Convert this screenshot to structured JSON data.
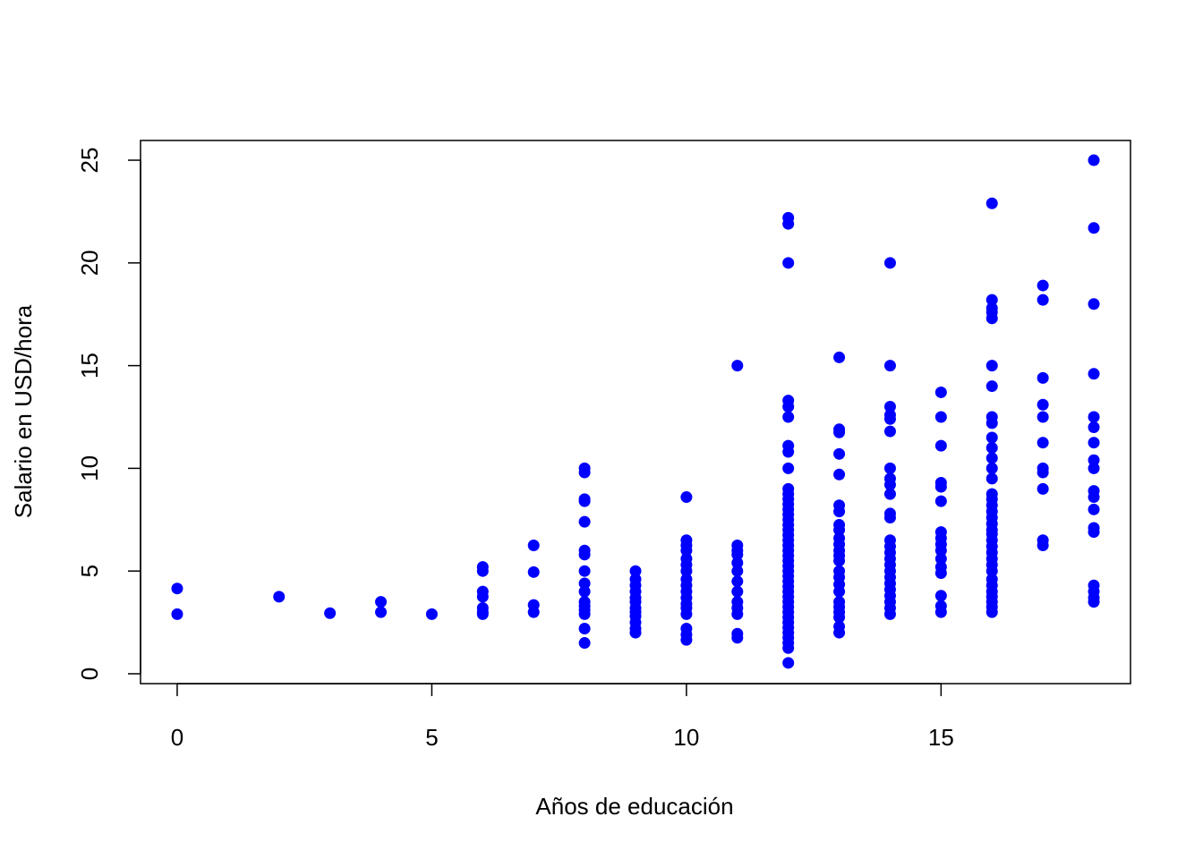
{
  "chart_data": {
    "type": "scatter",
    "title": "",
    "xlabel": "Años de educación",
    "ylabel": "Salario en USD/hora",
    "xlim": [
      -0.72,
      18.72
    ],
    "ylim": [
      -0.48,
      25.96
    ],
    "x_ticks": [
      0,
      5,
      10,
      15
    ],
    "y_ticks": [
      0,
      5,
      10,
      15,
      20,
      25
    ],
    "x_tick_labels": [
      "0",
      "5",
      "10",
      "15"
    ],
    "y_tick_labels": [
      "0",
      "5",
      "10",
      "15",
      "20",
      "25"
    ],
    "grid": false,
    "legend": "none",
    "point_color": "#0000ff",
    "points": [
      [
        0,
        2.9
      ],
      [
        0,
        4.15
      ],
      [
        2,
        3.75
      ],
      [
        3,
        2.95
      ],
      [
        4,
        3.0
      ],
      [
        4,
        3.5
      ],
      [
        5,
        2.9
      ],
      [
        6,
        2.9
      ],
      [
        6,
        3.0
      ],
      [
        6,
        3.2
      ],
      [
        6,
        3.75
      ],
      [
        6,
        4.0
      ],
      [
        6,
        5.0
      ],
      [
        6,
        5.2
      ],
      [
        7,
        3.0
      ],
      [
        7,
        3.35
      ],
      [
        7,
        4.95
      ],
      [
        7,
        6.25
      ],
      [
        8,
        1.5
      ],
      [
        8,
        2.2
      ],
      [
        8,
        2.9
      ],
      [
        8,
        3.1
      ],
      [
        8,
        3.3
      ],
      [
        8,
        3.5
      ],
      [
        8,
        4.0
      ],
      [
        8,
        4.4
      ],
      [
        8,
        5.0
      ],
      [
        8,
        5.8
      ],
      [
        8,
        6.0
      ],
      [
        8,
        7.4
      ],
      [
        8,
        8.4
      ],
      [
        8,
        8.5
      ],
      [
        8,
        9.8
      ],
      [
        8,
        10.0
      ],
      [
        9,
        2.0
      ],
      [
        9,
        2.2
      ],
      [
        9,
        2.5
      ],
      [
        9,
        2.8
      ],
      [
        9,
        3.0
      ],
      [
        9,
        3.2
      ],
      [
        9,
        3.5
      ],
      [
        9,
        3.7
      ],
      [
        9,
        4.0
      ],
      [
        9,
        4.3
      ],
      [
        9,
        4.6
      ],
      [
        9,
        5.0
      ],
      [
        10,
        1.65
      ],
      [
        10,
        1.9
      ],
      [
        10,
        2.2
      ],
      [
        10,
        2.9
      ],
      [
        10,
        3.2
      ],
      [
        10,
        3.4
      ],
      [
        10,
        3.7
      ],
      [
        10,
        4.0
      ],
      [
        10,
        4.3
      ],
      [
        10,
        4.6
      ],
      [
        10,
        5.0
      ],
      [
        10,
        5.3
      ],
      [
        10,
        5.6
      ],
      [
        10,
        6.0
      ],
      [
        10,
        6.25
      ],
      [
        10,
        6.5
      ],
      [
        10,
        8.6
      ],
      [
        11,
        1.75
      ],
      [
        11,
        1.95
      ],
      [
        11,
        2.9
      ],
      [
        11,
        3.2
      ],
      [
        11,
        3.5
      ],
      [
        11,
        4.0
      ],
      [
        11,
        4.5
      ],
      [
        11,
        5.0
      ],
      [
        11,
        5.4
      ],
      [
        11,
        5.8
      ],
      [
        11,
        6.0
      ],
      [
        11,
        6.25
      ],
      [
        11,
        15.0
      ],
      [
        12,
        0.53
      ],
      [
        12,
        1.25
      ],
      [
        12,
        1.5
      ],
      [
        12,
        1.75
      ],
      [
        12,
        2.0
      ],
      [
        12,
        2.25
      ],
      [
        12,
        2.5
      ],
      [
        12,
        2.75
      ],
      [
        12,
        3.0
      ],
      [
        12,
        3.25
      ],
      [
        12,
        3.5
      ],
      [
        12,
        3.75
      ],
      [
        12,
        4.0
      ],
      [
        12,
        4.25
      ],
      [
        12,
        4.5
      ],
      [
        12,
        4.75
      ],
      [
        12,
        5.0
      ],
      [
        12,
        5.25
      ],
      [
        12,
        5.5
      ],
      [
        12,
        5.75
      ],
      [
        12,
        6.0
      ],
      [
        12,
        6.25
      ],
      [
        12,
        6.5
      ],
      [
        12,
        6.75
      ],
      [
        12,
        7.0
      ],
      [
        12,
        7.25
      ],
      [
        12,
        7.5
      ],
      [
        12,
        7.75
      ],
      [
        12,
        8.0
      ],
      [
        12,
        8.25
      ],
      [
        12,
        8.5
      ],
      [
        12,
        8.75
      ],
      [
        12,
        9.0
      ],
      [
        12,
        10.0
      ],
      [
        12,
        10.8
      ],
      [
        12,
        11.1
      ],
      [
        12,
        12.5
      ],
      [
        12,
        13.0
      ],
      [
        12,
        13.3
      ],
      [
        12,
        20.0
      ],
      [
        12,
        21.9
      ],
      [
        12,
        22.2
      ],
      [
        13,
        2.0
      ],
      [
        13,
        2.3
      ],
      [
        13,
        2.75
      ],
      [
        13,
        3.0
      ],
      [
        13,
        3.25
      ],
      [
        13,
        3.5
      ],
      [
        13,
        4.0
      ],
      [
        13,
        4.35
      ],
      [
        13,
        4.7
      ],
      [
        13,
        5.0
      ],
      [
        13,
        5.5
      ],
      [
        13,
        5.75
      ],
      [
        13,
        6.0
      ],
      [
        13,
        6.3
      ],
      [
        13,
        6.6
      ],
      [
        13,
        7.0
      ],
      [
        13,
        7.25
      ],
      [
        13,
        7.9
      ],
      [
        13,
        8.2
      ],
      [
        13,
        9.7
      ],
      [
        13,
        10.7
      ],
      [
        13,
        11.75
      ],
      [
        13,
        11.9
      ],
      [
        13,
        15.4
      ],
      [
        14,
        2.9
      ],
      [
        14,
        3.2
      ],
      [
        14,
        3.5
      ],
      [
        14,
        3.8
      ],
      [
        14,
        4.1
      ],
      [
        14,
        4.4
      ],
      [
        14,
        4.7
      ],
      [
        14,
        5.0
      ],
      [
        14,
        5.3
      ],
      [
        14,
        5.6
      ],
      [
        14,
        5.9
      ],
      [
        14,
        6.2
      ],
      [
        14,
        6.5
      ],
      [
        14,
        7.6
      ],
      [
        14,
        7.8
      ],
      [
        14,
        8.75
      ],
      [
        14,
        9.2
      ],
      [
        14,
        9.5
      ],
      [
        14,
        10.0
      ],
      [
        14,
        11.8
      ],
      [
        14,
        12.4
      ],
      [
        14,
        12.6
      ],
      [
        14,
        13.0
      ],
      [
        14,
        15.0
      ],
      [
        14,
        20.0
      ],
      [
        15,
        3.0
      ],
      [
        15,
        3.3
      ],
      [
        15,
        3.8
      ],
      [
        15,
        4.9
      ],
      [
        15,
        5.2
      ],
      [
        15,
        5.6
      ],
      [
        15,
        6.0
      ],
      [
        15,
        6.3
      ],
      [
        15,
        6.6
      ],
      [
        15,
        6.9
      ],
      [
        15,
        8.4
      ],
      [
        15,
        9.1
      ],
      [
        15,
        9.3
      ],
      [
        15,
        11.1
      ],
      [
        15,
        12.5
      ],
      [
        15,
        13.7
      ],
      [
        16,
        3.0
      ],
      [
        16,
        3.25
      ],
      [
        16,
        3.5
      ],
      [
        16,
        3.75
      ],
      [
        16,
        4.0
      ],
      [
        16,
        4.3
      ],
      [
        16,
        4.6
      ],
      [
        16,
        5.0
      ],
      [
        16,
        5.3
      ],
      [
        16,
        5.6
      ],
      [
        16,
        5.9
      ],
      [
        16,
        6.2
      ],
      [
        16,
        6.5
      ],
      [
        16,
        6.8
      ],
      [
        16,
        7.0
      ],
      [
        16,
        7.3
      ],
      [
        16,
        7.6
      ],
      [
        16,
        7.9
      ],
      [
        16,
        8.2
      ],
      [
        16,
        8.5
      ],
      [
        16,
        8.75
      ],
      [
        16,
        9.5
      ],
      [
        16,
        10.0
      ],
      [
        16,
        10.5
      ],
      [
        16,
        11.0
      ],
      [
        16,
        11.5
      ],
      [
        16,
        12.2
      ],
      [
        16,
        12.5
      ],
      [
        16,
        14.0
      ],
      [
        16,
        15.0
      ],
      [
        16,
        17.3
      ],
      [
        16,
        17.6
      ],
      [
        16,
        17.8
      ],
      [
        16,
        18.2
      ],
      [
        16,
        22.9
      ],
      [
        17,
        6.25
      ],
      [
        17,
        6.5
      ],
      [
        17,
        9.0
      ],
      [
        17,
        9.8
      ],
      [
        17,
        10.0
      ],
      [
        17,
        11.25
      ],
      [
        17,
        12.5
      ],
      [
        17,
        13.1
      ],
      [
        17,
        14.4
      ],
      [
        17,
        18.2
      ],
      [
        17,
        18.9
      ],
      [
        18,
        3.5
      ],
      [
        18,
        3.7
      ],
      [
        18,
        4.0
      ],
      [
        18,
        4.3
      ],
      [
        18,
        6.9
      ],
      [
        18,
        7.1
      ],
      [
        18,
        8.0
      ],
      [
        18,
        8.6
      ],
      [
        18,
        8.9
      ],
      [
        18,
        10.0
      ],
      [
        18,
        10.4
      ],
      [
        18,
        11.25
      ],
      [
        18,
        12.0
      ],
      [
        18,
        12.5
      ],
      [
        18,
        14.6
      ],
      [
        18,
        18.0
      ],
      [
        18,
        21.7
      ],
      [
        18,
        25.0
      ]
    ]
  }
}
